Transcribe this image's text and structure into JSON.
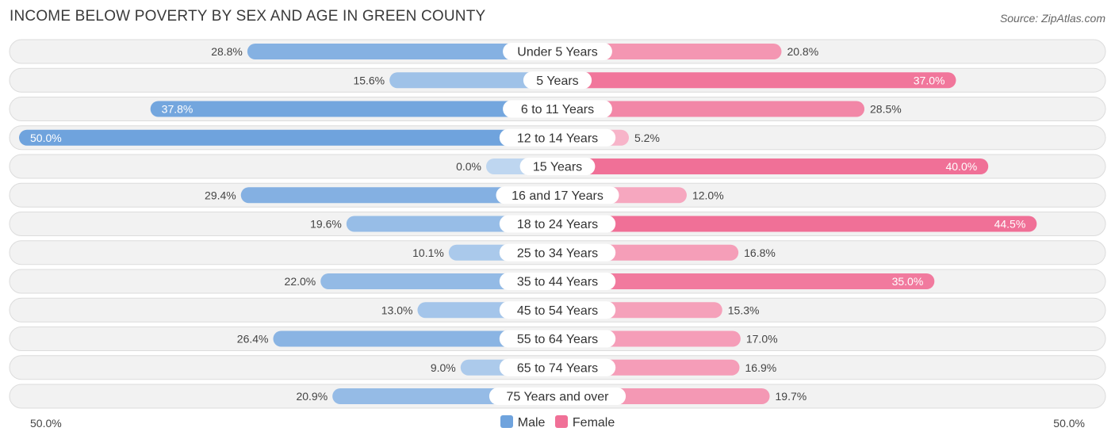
{
  "chart_data": {
    "type": "bar",
    "title": "INCOME BELOW POVERTY BY SEX AND AGE IN GREEN COUNTY",
    "source": "Source: ZipAtlas.com",
    "categories": [
      "Under 5 Years",
      "5 Years",
      "6 to 11 Years",
      "12 to 14 Years",
      "15 Years",
      "16 and 17 Years",
      "18 to 24 Years",
      "25 to 34 Years",
      "35 to 44 Years",
      "45 to 54 Years",
      "55 to 64 Years",
      "65 to 74 Years",
      "75 Years and over"
    ],
    "series": [
      {
        "name": "Male",
        "color": "#6fa3dd",
        "values": [
          28.8,
          15.6,
          37.8,
          50.0,
          0.0,
          29.4,
          19.6,
          10.1,
          22.0,
          13.0,
          26.4,
          9.0,
          20.9
        ],
        "labels": [
          "28.8%",
          "15.6%",
          "37.8%",
          "50.0%",
          "0.0%",
          "29.4%",
          "19.6%",
          "10.1%",
          "22.0%",
          "13.0%",
          "26.4%",
          "9.0%",
          "20.9%"
        ]
      },
      {
        "name": "Female",
        "color": "#f07097",
        "values": [
          20.8,
          37.0,
          28.5,
          5.2,
          40.0,
          12.0,
          44.5,
          16.8,
          35.0,
          15.3,
          17.0,
          16.9,
          19.7
        ],
        "labels": [
          "20.8%",
          "37.0%",
          "28.5%",
          "5.2%",
          "40.0%",
          "12.0%",
          "44.5%",
          "16.8%",
          "35.0%",
          "15.3%",
          "17.0%",
          "16.9%",
          "19.7%"
        ]
      }
    ],
    "xlim": [
      0,
      50
    ],
    "axis_left_label": "50.0%",
    "axis_right_label": "50.0%"
  },
  "legend": {
    "male_label": "Male",
    "female_label": "Female",
    "male_color": "#6fa3dd",
    "female_color": "#f07097"
  }
}
